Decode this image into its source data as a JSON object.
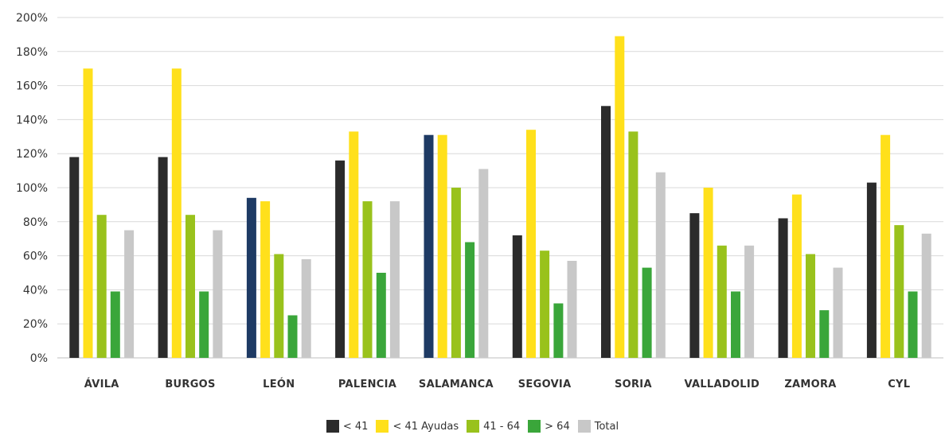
{
  "chart_data": {
    "type": "bar",
    "categories": [
      "ÁVILA",
      "BURGOS",
      "LEÓN",
      "PALENCIA",
      "SALAMANCA",
      "SEGOVIA",
      "SORIA",
      "VALLADOLID",
      "ZAMORA",
      "CYL"
    ],
    "series": [
      {
        "name": "< 41",
        "color": "#2b2b2b",
        "values": [
          118,
          118,
          94,
          116,
          131,
          72,
          148,
          85,
          82,
          103
        ]
      },
      {
        "name": "< 41 Ayudas",
        "color": "#ffe01b",
        "values": [
          170,
          170,
          92,
          133,
          131,
          134,
          189,
          100,
          96,
          131
        ]
      },
      {
        "name": "41 - 64",
        "color": "#99c21c",
        "values": [
          84,
          84,
          61,
          92,
          100,
          63,
          133,
          66,
          61,
          78
        ]
      },
      {
        "name": "> 64",
        "color": "#3aa63a",
        "values": [
          39,
          39,
          25,
          50,
          68,
          32,
          53,
          39,
          28,
          39
        ]
      },
      {
        "name": "Total",
        "color": "#c8c8c8",
        "values": [
          75,
          75,
          58,
          92,
          111,
          57,
          109,
          66,
          53,
          73
        ]
      }
    ],
    "highlight_color": "#1e3a64",
    "highlight_categories": [
      "LEÓN",
      "SALAMANCA"
    ],
    "y_ticks": [
      "0%",
      "20%",
      "40%",
      "60%",
      "80%",
      "100%",
      "120%",
      "140%",
      "160%",
      "180%",
      "200%"
    ],
    "ylim": [
      0,
      200
    ],
    "grid": true,
    "legend_position": "bottom"
  }
}
